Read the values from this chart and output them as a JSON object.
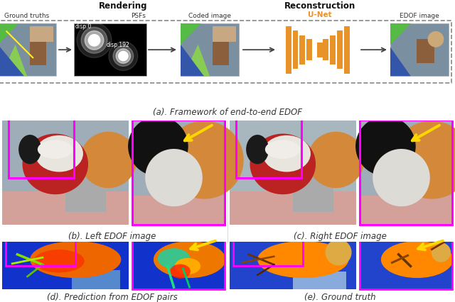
{
  "title_a": "(a). Framework of end-to-end EDOF",
  "title_b": "(b). Left EDOF image",
  "title_c": "(c). Right EDOF image",
  "title_d": "(d). Prediction from EDOF pairs",
  "title_e": "(e). Ground truth",
  "label_rendering": "Rendering",
  "label_reconstruction": "Reconstruction",
  "label_ground_truths": "Ground truths",
  "label_psfs": "PSFs",
  "label_coded_image": "Coded image",
  "label_unet": "U-Net",
  "label_edof_image": "EDOF image",
  "label_disp0": "disp.0",
  "label_disp192": "disp.192",
  "orange_color": "#E8922A",
  "magenta_color": "#FF00FF",
  "yellow_color": "#FFD700",
  "bg_color": "#FFFFFF",
  "arrow_color": "#444444",
  "dashed_color": "#888888",
  "fig_w": 6.4,
  "fig_h": 4.26,
  "dpi": 100
}
